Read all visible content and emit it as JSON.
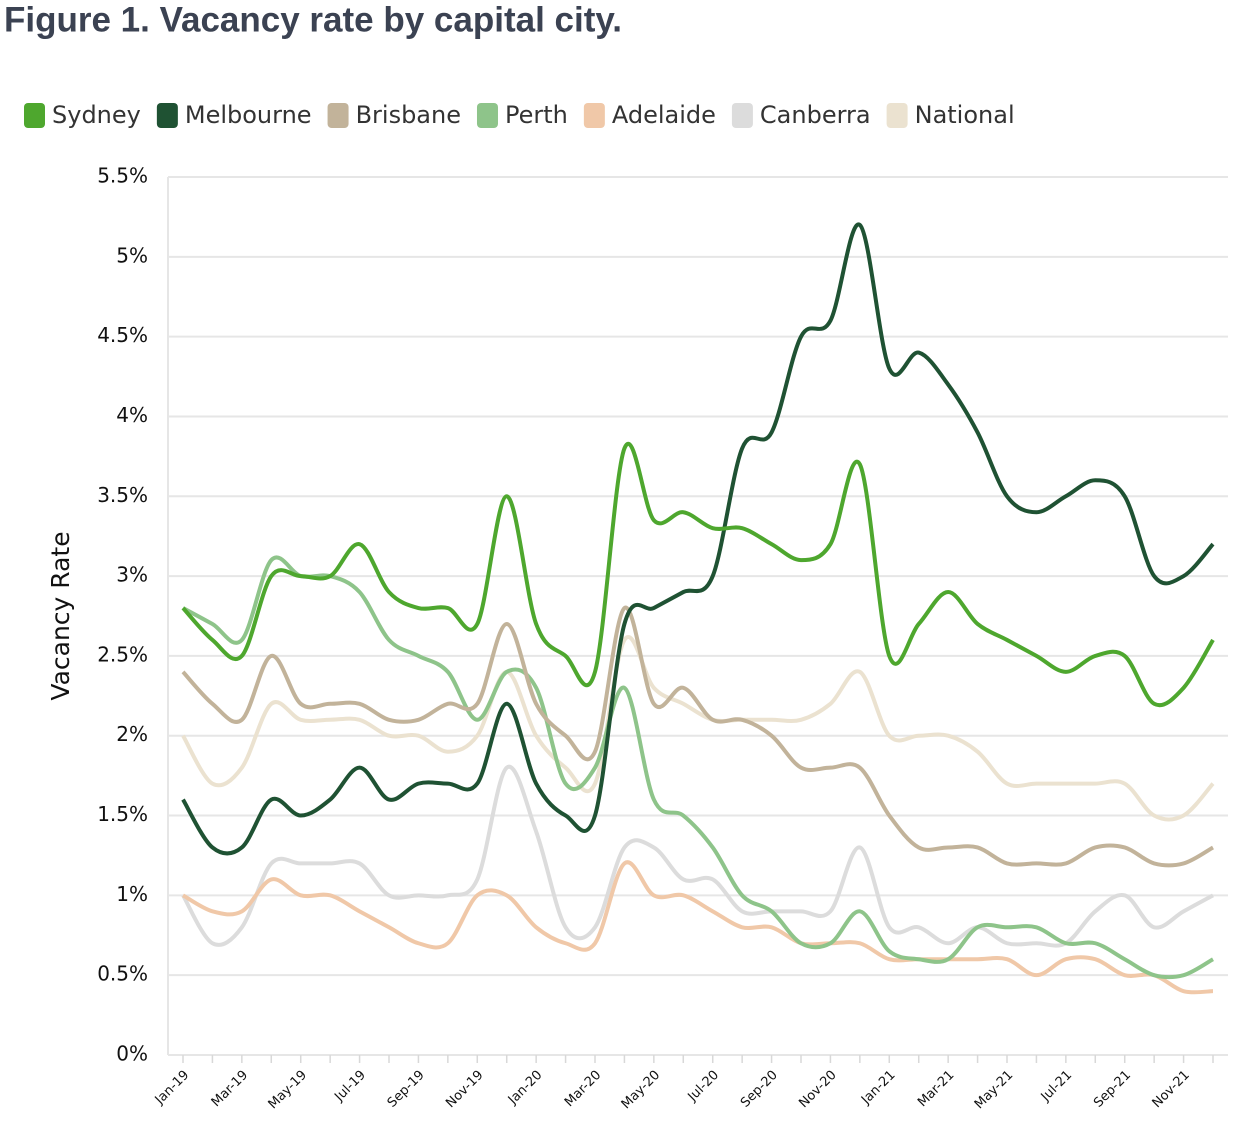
{
  "chart_data": {
    "type": "line",
    "title": "Figure 1. Vacancy rate by capital city.",
    "y_label": "Vacancy Rate",
    "categories": [
      "Jan-19",
      null,
      "Mar-19",
      null,
      "May-19",
      null,
      "Jul-19",
      null,
      "Sep-19",
      null,
      "Nov-19",
      null,
      "Jan-20",
      null,
      "Mar-20",
      null,
      "May-20",
      null,
      "Jul-20",
      null,
      "Sep-20",
      null,
      "Nov-20",
      null,
      "Jan-21",
      null,
      "Mar-21",
      null,
      "May-21",
      null,
      "Jul-21",
      null,
      "Sep-21",
      null,
      "Nov-21",
      null
    ],
    "ylim": [
      0,
      5.5
    ],
    "yticks": [
      {
        "value": 0,
        "label": "0%"
      },
      {
        "value": 0.5,
        "label": "0.5%"
      },
      {
        "value": 1,
        "label": "1%"
      },
      {
        "value": 1.5,
        "label": "1.5%"
      },
      {
        "value": 2,
        "label": "2%"
      },
      {
        "value": 2.5,
        "label": "2.5%"
      },
      {
        "value": 3,
        "label": "3%"
      },
      {
        "value": 3.5,
        "label": "3.5%"
      },
      {
        "value": 4,
        "label": "4%"
      },
      {
        "value": 4.5,
        "label": "4.5%"
      },
      {
        "value": 5,
        "label": "5%"
      },
      {
        "value": 5.5,
        "label": "5.5%"
      }
    ],
    "grid": true,
    "series": [
      {
        "name": "Sydney",
        "color": "#4ea72e",
        "values": [
          2.8,
          2.6,
          2.5,
          3.0,
          3.0,
          3.0,
          3.2,
          2.9,
          2.8,
          2.8,
          2.7,
          3.5,
          2.7,
          2.5,
          2.4,
          3.8,
          3.35,
          3.4,
          3.3,
          3.3,
          3.2,
          3.1,
          3.2,
          3.7,
          2.5,
          2.7,
          2.9,
          2.7,
          2.6,
          2.5,
          2.4,
          2.5,
          2.5,
          2.2,
          2.3,
          2.6
        ]
      },
      {
        "name": "Melbourne",
        "color": "#1f5233",
        "values": [
          1.6,
          1.3,
          1.3,
          1.6,
          1.5,
          1.6,
          1.8,
          1.6,
          1.7,
          1.7,
          1.7,
          2.2,
          1.7,
          1.5,
          1.5,
          2.7,
          2.8,
          2.9,
          3.0,
          3.8,
          3.9,
          4.5,
          4.6,
          5.2,
          4.3,
          4.4,
          4.2,
          3.9,
          3.5,
          3.4,
          3.5,
          3.6,
          3.5,
          3.0,
          3.0,
          3.2
        ]
      },
      {
        "name": "Brisbane",
        "color": "#c2b39a",
        "values": [
          2.4,
          2.2,
          2.1,
          2.5,
          2.2,
          2.2,
          2.2,
          2.1,
          2.1,
          2.2,
          2.2,
          2.7,
          2.2,
          2.0,
          1.9,
          2.8,
          2.2,
          2.3,
          2.1,
          2.1,
          2.0,
          1.8,
          1.8,
          1.8,
          1.5,
          1.3,
          1.3,
          1.3,
          1.2,
          1.2,
          1.2,
          1.3,
          1.3,
          1.2,
          1.2,
          1.3
        ]
      },
      {
        "name": "Perth",
        "color": "#8ec48a",
        "values": [
          2.8,
          2.7,
          2.6,
          3.1,
          3.0,
          3.0,
          2.9,
          2.6,
          2.5,
          2.4,
          2.1,
          2.4,
          2.3,
          1.7,
          1.8,
          2.3,
          1.6,
          1.5,
          1.3,
          1.0,
          0.9,
          0.7,
          0.7,
          0.9,
          0.65,
          0.6,
          0.6,
          0.8,
          0.8,
          0.8,
          0.7,
          0.7,
          0.6,
          0.5,
          0.5,
          0.6
        ]
      },
      {
        "name": "Adelaide",
        "color": "#f0c8a8",
        "values": [
          1.0,
          0.9,
          0.9,
          1.1,
          1.0,
          1.0,
          0.9,
          0.8,
          0.7,
          0.7,
          1.0,
          1.0,
          0.8,
          0.7,
          0.7,
          1.2,
          1.0,
          1.0,
          0.9,
          0.8,
          0.8,
          0.7,
          0.7,
          0.7,
          0.6,
          0.6,
          0.6,
          0.6,
          0.6,
          0.5,
          0.6,
          0.6,
          0.5,
          0.5,
          0.4,
          0.4
        ]
      },
      {
        "name": "Canberra",
        "color": "#dcdcdc",
        "values": [
          1.0,
          0.7,
          0.8,
          1.2,
          1.2,
          1.2,
          1.2,
          1.0,
          1.0,
          1.0,
          1.1,
          1.8,
          1.4,
          0.8,
          0.8,
          1.3,
          1.3,
          1.1,
          1.1,
          0.9,
          0.9,
          0.9,
          0.9,
          1.3,
          0.8,
          0.8,
          0.7,
          0.8,
          0.7,
          0.7,
          0.7,
          0.9,
          1.0,
          0.8,
          0.9,
          1.0
        ]
      },
      {
        "name": "National",
        "color": "#ebe2d0",
        "values": [
          2.0,
          1.7,
          1.8,
          2.2,
          2.1,
          2.1,
          2.1,
          2.0,
          2.0,
          1.9,
          2.0,
          2.4,
          2.0,
          1.8,
          1.7,
          2.6,
          2.3,
          2.2,
          2.1,
          2.1,
          2.1,
          2.1,
          2.2,
          2.4,
          2.0,
          2.0,
          2.0,
          1.9,
          1.7,
          1.7,
          1.7,
          1.7,
          1.7,
          1.5,
          1.5,
          1.7
        ]
      }
    ]
  }
}
